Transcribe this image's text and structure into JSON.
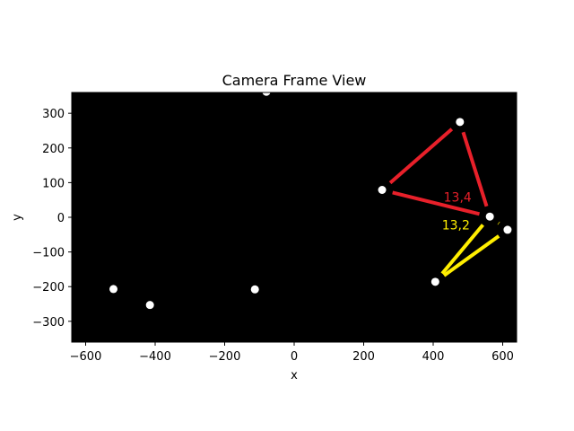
{
  "chart_data": {
    "type": "scatter",
    "title": "Camera Frame View",
    "xlabel": "x",
    "ylabel": "y",
    "xlim": [
      -640,
      640
    ],
    "ylim": [
      -360,
      360
    ],
    "xticks": [
      -600,
      -400,
      -200,
      0,
      200,
      400,
      600
    ],
    "yticks": [
      -300,
      -200,
      -100,
      0,
      100,
      200,
      300
    ],
    "background": "#000000",
    "point_color": "#ffffff",
    "points": [
      {
        "x": -520,
        "y": -207
      },
      {
        "x": -415,
        "y": -253
      },
      {
        "x": -113,
        "y": -208
      },
      {
        "x": -80,
        "y": 362
      },
      {
        "x": 253,
        "y": 79
      },
      {
        "x": 477,
        "y": 275
      },
      {
        "x": 563,
        "y": 2
      },
      {
        "x": 614,
        "y": -36
      },
      {
        "x": 406,
        "y": -186
      }
    ],
    "polygons": [
      {
        "color": "#e8202a",
        "label": "13,4",
        "vertices": [
          [
            563,
            2
          ],
          [
            477,
            275
          ],
          [
            253,
            79
          ]
        ],
        "label_pos": [
          430,
          45
        ]
      },
      {
        "color": "#ffee00",
        "label": "13,2",
        "vertices": [
          [
            563,
            2
          ],
          [
            614,
            -36
          ],
          [
            406,
            -186
          ]
        ],
        "label_pos": [
          425,
          -35
        ]
      }
    ]
  }
}
